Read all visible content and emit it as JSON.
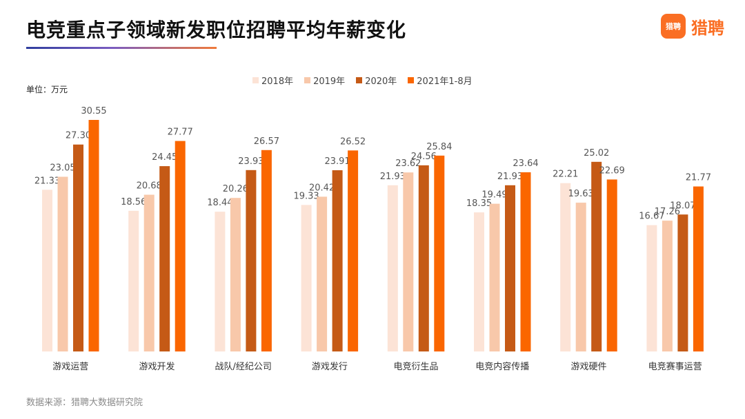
{
  "header": {
    "title": "电竞重点子领域新发职位招聘平均年薪变化",
    "logo_badge": "猎聘",
    "logo_text": "猎聘"
  },
  "unit_label": "单位：万元",
  "source_label": "数据来源：猎聘大数据研究院",
  "colors": {
    "accent": "#fa6e23",
    "title_line_start": "#2f3e9e",
    "title_line_end": "#f07a3a"
  },
  "chart_data": {
    "type": "bar",
    "categories": [
      "游戏运营",
      "游戏开发",
      "战队/经纪公司",
      "游戏发行",
      "电竞衍生品",
      "电竞内容传播",
      "游戏硬件",
      "电竞赛事运营"
    ],
    "series": [
      {
        "name": "2018年",
        "color": "#fce3d6",
        "values": [
          21.33,
          18.56,
          18.44,
          19.33,
          21.93,
          18.35,
          22.21,
          16.67
        ]
      },
      {
        "name": "2019年",
        "color": "#f8c8aa",
        "values": [
          23.05,
          20.68,
          20.26,
          20.42,
          23.62,
          19.49,
          19.63,
          17.26
        ]
      },
      {
        "name": "2020年",
        "color": "#c55a16",
        "values": [
          27.3,
          24.45,
          23.93,
          23.91,
          24.56,
          21.93,
          25.02,
          18.07
        ]
      },
      {
        "name": "2021年1-8月",
        "color": "#fa6600",
        "values": [
          30.55,
          27.77,
          26.57,
          26.52,
          25.84,
          23.64,
          22.69,
          21.77
        ]
      }
    ],
    "value_labels": [
      [
        "21.33",
        "18.56",
        "18.44",
        "19.33",
        "21.93",
        "18.35",
        "22.21",
        "16.67"
      ],
      [
        "23.05",
        "20.68",
        "20.26",
        "20.42",
        "23.62",
        "19.49",
        "19.63",
        "17.26"
      ],
      [
        "27.30",
        "24.45",
        "23.93",
        "23.91",
        "24.56",
        "21.93",
        "25.02",
        "18.07"
      ],
      [
        "30.55",
        "27.77",
        "26.57",
        "26.52",
        "25.84",
        "23.64",
        "22.69",
        "21.77"
      ]
    ],
    "ylim": [
      0,
      30.55
    ],
    "grid": false,
    "legend_position": "top-center"
  }
}
